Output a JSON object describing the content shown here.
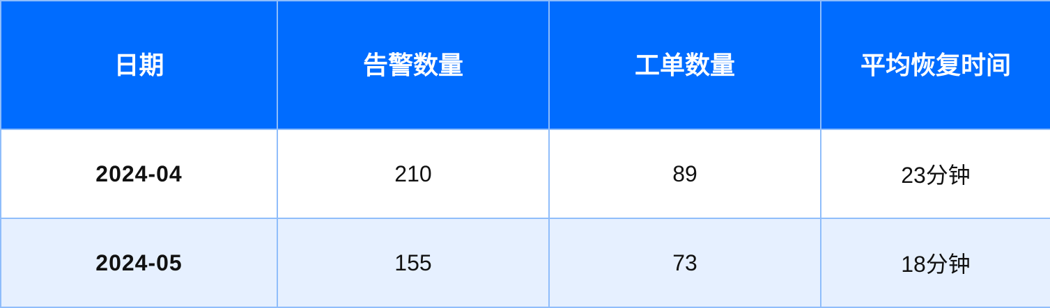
{
  "table": {
    "headers": [
      "日期",
      "告警数量",
      "工单数量",
      "平均恢复时间"
    ],
    "rows": [
      [
        "2024-04",
        "210",
        "89",
        "23分钟"
      ],
      [
        "2024-05",
        "155",
        "73",
        "18分钟"
      ]
    ]
  },
  "colors": {
    "header_bg": "#006cff",
    "border": "#8fbdfb",
    "alt_row_bg": "#e6f0ff"
  }
}
